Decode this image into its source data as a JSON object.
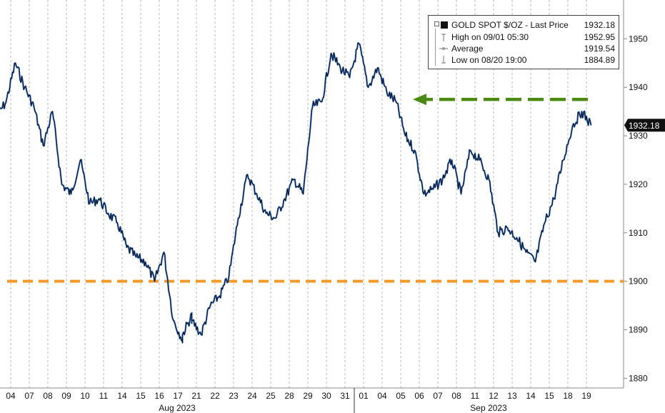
{
  "chart_data": {
    "type": "line",
    "title": "",
    "xlabel": "",
    "ylabel": "",
    "y_axis_side": "right",
    "ylim": [
      1878,
      1958
    ],
    "y_ticks": [
      1880,
      1890,
      1900,
      1910,
      1920,
      1930,
      1940,
      1950
    ],
    "grid": "vertical dashed lines at each date tick",
    "legend_placement": "top-right",
    "x_ticks": [
      "04",
      "07",
      "08",
      "09",
      "10",
      "11",
      "14",
      "15",
      "16",
      "17",
      "21",
      "22",
      "23",
      "24",
      "25",
      "28",
      "29",
      "30",
      "31",
      "01",
      "04",
      "05",
      "06",
      "07",
      "08",
      "11",
      "12",
      "13",
      "14",
      "15",
      "18",
      "19"
    ],
    "x_groups": [
      {
        "label": "Aug 2023"
      },
      {
        "label": "Sep 2023"
      }
    ],
    "series": [
      {
        "name": "GOLD SPOT $/OZ - Last Price",
        "color": "#111111",
        "highlight_color": "#2f6fd6",
        "x": [
          "08/03",
          "08/04",
          "08/04",
          "08/07",
          "08/07",
          "08/08",
          "08/08",
          "08/09",
          "08/09",
          "08/10",
          "08/10",
          "08/11",
          "08/11",
          "08/14",
          "08/14",
          "08/15",
          "08/15",
          "08/16",
          "08/16",
          "08/17",
          "08/17",
          "08/18",
          "08/18",
          "08/21",
          "08/21",
          "08/22",
          "08/22",
          "08/23",
          "08/23",
          "08/24",
          "08/24",
          "08/25",
          "08/25",
          "08/28",
          "08/28",
          "08/29",
          "08/29",
          "08/30",
          "08/30",
          "08/31",
          "08/31",
          "09/01",
          "09/01",
          "09/04",
          "09/04",
          "09/05",
          "09/05",
          "09/06",
          "09/06",
          "09/07",
          "09/07",
          "09/08",
          "09/08",
          "09/11",
          "09/11",
          "09/12",
          "09/12",
          "09/13",
          "09/13",
          "09/14",
          "09/14",
          "09/15",
          "09/15",
          "09/18",
          "09/18",
          "09/19",
          "09/19"
        ],
        "values": [
          1934,
          1937,
          1945,
          1940,
          1936,
          1928,
          1935,
          1920,
          1918,
          1925,
          1916,
          1917,
          1914,
          1912,
          1907,
          1905,
          1904,
          1900,
          1906,
          1892,
          1888,
          1889,
          1893,
          1892,
          1889,
          1895,
          1897,
          1901,
          1913,
          1922,
          1918,
          1914,
          1913,
          1917,
          1921,
          1918,
          1936,
          1937,
          1947,
          1944,
          1942,
          1949,
          1940,
          1944,
          1939,
          1937,
          1930,
          1927,
          1918,
          1919,
          1921,
          1925,
          1918,
          1927,
          1925,
          1921,
          1910,
          1911,
          1909,
          1906,
          1904,
          1912,
          1917,
          1925,
          1932,
          1935,
          1932.18
        ]
      }
    ],
    "last_price_label": "1932.18",
    "legend": {
      "title": "GOLD SPOT $/OZ - Last Price",
      "last_value": "1932.18",
      "high_label": "High on 09/01 05:30",
      "high_value": "1952.95",
      "average_label": "Average",
      "average_value": "1919.54",
      "low_label": "Low on 08/20 19:00",
      "low_value": "1884.89"
    },
    "annotations": [
      {
        "kind": "horizontal-dashed-line",
        "color": "#f39a2b",
        "y": 1900
      },
      {
        "kind": "dashed-arrow",
        "color": "#4a8a12",
        "y": 1937.5,
        "from": "09/19",
        "to": "09/05"
      }
    ]
  }
}
